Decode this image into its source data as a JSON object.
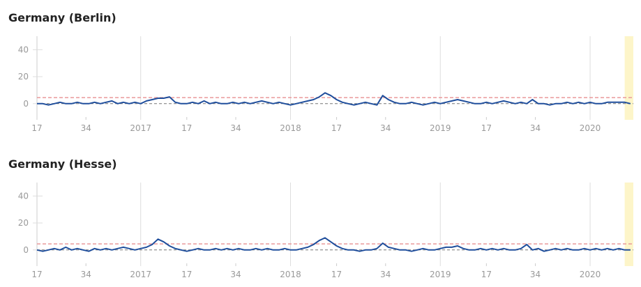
{
  "chart_data": [
    {
      "type": "line",
      "title": "Germany (Berlin)",
      "color": "#1f4e9c",
      "x": [
        0,
        2,
        4,
        6,
        8,
        10,
        12,
        14,
        16,
        18,
        20,
        22,
        24,
        26,
        28,
        30,
        32,
        34,
        36,
        38,
        40,
        42,
        44,
        46,
        48,
        50,
        52,
        54,
        56,
        58,
        60,
        62,
        64,
        66,
        68,
        70,
        72,
        74,
        76,
        78,
        80,
        82,
        84,
        86,
        88,
        90,
        92,
        94,
        96,
        98,
        100,
        102,
        104,
        106,
        108,
        110,
        112,
        114,
        116,
        118,
        120,
        122,
        124,
        126,
        128,
        130,
        132,
        134,
        136,
        138,
        140,
        142,
        144,
        146,
        148,
        150,
        152,
        154,
        156,
        158,
        160,
        162,
        164,
        166,
        168,
        170,
        172,
        174,
        176,
        178,
        180,
        182,
        184,
        186,
        188,
        190,
        192,
        194,
        196,
        198,
        200,
        202,
        204,
        206
      ],
      "values": [
        0,
        0,
        -1,
        0,
        1,
        0,
        0,
        1,
        0,
        0,
        1,
        0,
        1,
        2,
        0,
        1,
        0,
        1,
        0,
        2,
        3,
        4,
        4,
        5,
        1,
        0,
        0,
        1,
        0,
        2,
        0,
        1,
        0,
        0,
        1,
        0,
        1,
        0,
        1,
        2,
        1,
        0,
        1,
        0,
        -1,
        0,
        1,
        2,
        3,
        5,
        8,
        6,
        3,
        1,
        0,
        -1,
        0,
        1,
        0,
        -1,
        6,
        3,
        1,
        0,
        0,
        1,
        0,
        -1,
        0,
        1,
        0,
        1,
        2,
        3,
        2,
        1,
        0,
        0,
        1,
        0,
        1,
        2,
        1,
        0,
        1,
        0,
        3,
        0,
        0,
        -1,
        0,
        0,
        1,
        0,
        1,
        0,
        1,
        0,
        0,
        1,
        1,
        1,
        1,
        0
      ],
      "xlim": [
        0,
        207
      ],
      "ylim": [
        -12,
        50
      ],
      "yticks": [
        0,
        20,
        40
      ],
      "xticks": [
        {
          "value": 0,
          "label": "17"
        },
        {
          "value": 17,
          "label": "34"
        },
        {
          "value": 36,
          "label": "2017"
        },
        {
          "value": 52,
          "label": "17"
        },
        {
          "value": 69,
          "label": "34"
        },
        {
          "value": 88,
          "label": "2018"
        },
        {
          "value": 104,
          "label": "17"
        },
        {
          "value": 121,
          "label": "34"
        },
        {
          "value": 140,
          "label": "2019"
        },
        {
          "value": 156,
          "label": "17"
        },
        {
          "value": 173,
          "label": "34"
        },
        {
          "value": 192,
          "label": "2020"
        }
      ],
      "threshold": 4.5,
      "baseline": 0,
      "highlight": [
        204,
        207
      ],
      "grid": true
    },
    {
      "type": "line",
      "title": "Germany (Hesse)",
      "color": "#1f4e9c",
      "x": [
        0,
        2,
        4,
        6,
        8,
        10,
        12,
        14,
        16,
        18,
        20,
        22,
        24,
        26,
        28,
        30,
        32,
        34,
        36,
        38,
        40,
        42,
        44,
        46,
        48,
        50,
        52,
        54,
        56,
        58,
        60,
        62,
        64,
        66,
        68,
        70,
        72,
        74,
        76,
        78,
        80,
        82,
        84,
        86,
        88,
        90,
        92,
        94,
        96,
        98,
        100,
        102,
        104,
        106,
        108,
        110,
        112,
        114,
        116,
        118,
        120,
        122,
        124,
        126,
        128,
        130,
        132,
        134,
        136,
        138,
        140,
        142,
        144,
        146,
        148,
        150,
        152,
        154,
        156,
        158,
        160,
        162,
        164,
        166,
        168,
        170,
        172,
        174,
        176,
        178,
        180,
        182,
        184,
        186,
        188,
        190,
        192,
        194,
        196,
        198,
        200,
        202,
        204,
        206
      ],
      "values": [
        0,
        -1,
        0,
        1,
        0,
        2,
        0,
        1,
        0,
        -1,
        1,
        0,
        1,
        0,
        1,
        2,
        1,
        0,
        1,
        2,
        4,
        8,
        6,
        3,
        1,
        0,
        -1,
        0,
        1,
        0,
        0,
        1,
        0,
        1,
        0,
        1,
        0,
        0,
        1,
        0,
        1,
        0,
        0,
        1,
        0,
        0,
        1,
        2,
        4,
        7,
        9,
        6,
        3,
        1,
        0,
        0,
        -1,
        0,
        0,
        1,
        5,
        2,
        1,
        0,
        0,
        -1,
        0,
        1,
        0,
        0,
        1,
        2,
        2,
        3,
        1,
        0,
        0,
        1,
        0,
        1,
        0,
        1,
        0,
        0,
        1,
        4,
        0,
        1,
        -1,
        0,
        1,
        0,
        1,
        0,
        0,
        1,
        0,
        1,
        0,
        1,
        0,
        1,
        0,
        0
      ],
      "xlim": [
        0,
        207
      ],
      "ylim": [
        -12,
        50
      ],
      "yticks": [
        0,
        20,
        40
      ],
      "xticks": [
        {
          "value": 0,
          "label": "17"
        },
        {
          "value": 17,
          "label": "34"
        },
        {
          "value": 36,
          "label": "2017"
        },
        {
          "value": 52,
          "label": "17"
        },
        {
          "value": 69,
          "label": "34"
        },
        {
          "value": 88,
          "label": "2018"
        },
        {
          "value": 104,
          "label": "17"
        },
        {
          "value": 121,
          "label": "34"
        },
        {
          "value": 140,
          "label": "2019"
        },
        {
          "value": 156,
          "label": "17"
        },
        {
          "value": 173,
          "label": "34"
        },
        {
          "value": 192,
          "label": "2020"
        }
      ],
      "threshold": 4.5,
      "baseline": 0,
      "highlight": [
        204,
        207
      ],
      "grid": true
    }
  ]
}
